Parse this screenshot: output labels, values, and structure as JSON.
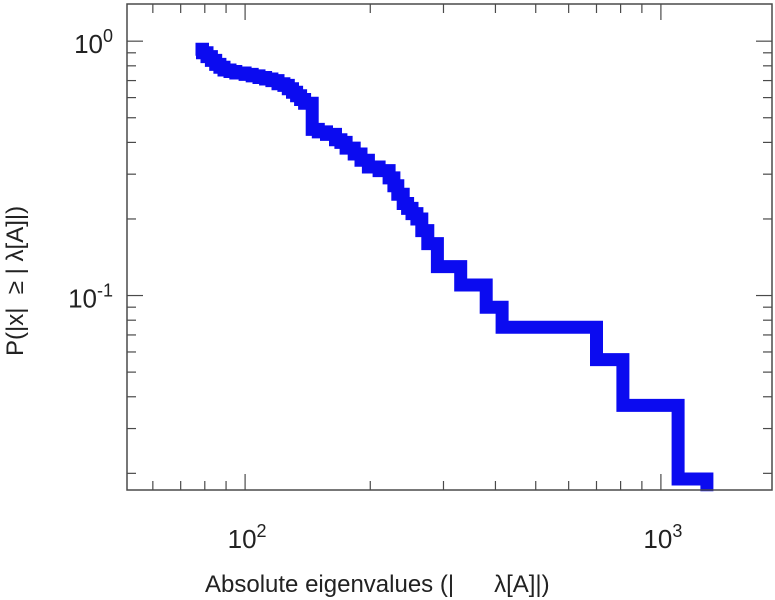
{
  "chart_data": {
    "type": "line",
    "xlabel": "Absolute eigenvalues (|      λ[A]|)",
    "ylabel": "P(|x|  ≥ | λ[A]|)",
    "x_scale": "log",
    "y_scale": "log",
    "xlim": [
      52,
      1850
    ],
    "ylim": [
      0.0172,
      1.4
    ],
    "grid": false,
    "legend": "none",
    "x_major_ticks": [
      {
        "value": 100,
        "base": "10",
        "exp": "2"
      },
      {
        "value": 1000,
        "base": "10",
        "exp": "3"
      }
    ],
    "y_major_ticks": [
      {
        "value": 1,
        "base": "10",
        "exp": "0"
      },
      {
        "value": 0.1,
        "base": "10",
        "exp": "-1"
      }
    ],
    "series": [
      {
        "color": "#0b0bf0",
        "step": true,
        "x": [
          76,
          79,
          81,
          83,
          85,
          87,
          89,
          92,
          95,
          100,
          104,
          108,
          112,
          116,
          120,
          124,
          127,
          130,
          133,
          136,
          139,
          145,
          150,
          157,
          165,
          170,
          175,
          183,
          190,
          198,
          210,
          222,
          228,
          233,
          240,
          246,
          252,
          259,
          266,
          275,
          290,
          330,
          380,
          415,
          570,
          700,
          810,
          1100,
          1290
        ],
        "y": [
          0.93,
          0.9,
          0.87,
          0.84,
          0.81,
          0.79,
          0.77,
          0.76,
          0.75,
          0.74,
          0.73,
          0.72,
          0.71,
          0.7,
          0.68,
          0.67,
          0.65,
          0.63,
          0.61,
          0.59,
          0.57,
          0.45,
          0.44,
          0.43,
          0.41,
          0.4,
          0.38,
          0.36,
          0.34,
          0.32,
          0.31,
          0.29,
          0.27,
          0.25,
          0.23,
          0.22,
          0.21,
          0.2,
          0.18,
          0.16,
          0.13,
          0.11,
          0.09,
          0.075,
          0.075,
          0.056,
          0.037,
          0.019,
          0.017
        ]
      }
    ]
  }
}
